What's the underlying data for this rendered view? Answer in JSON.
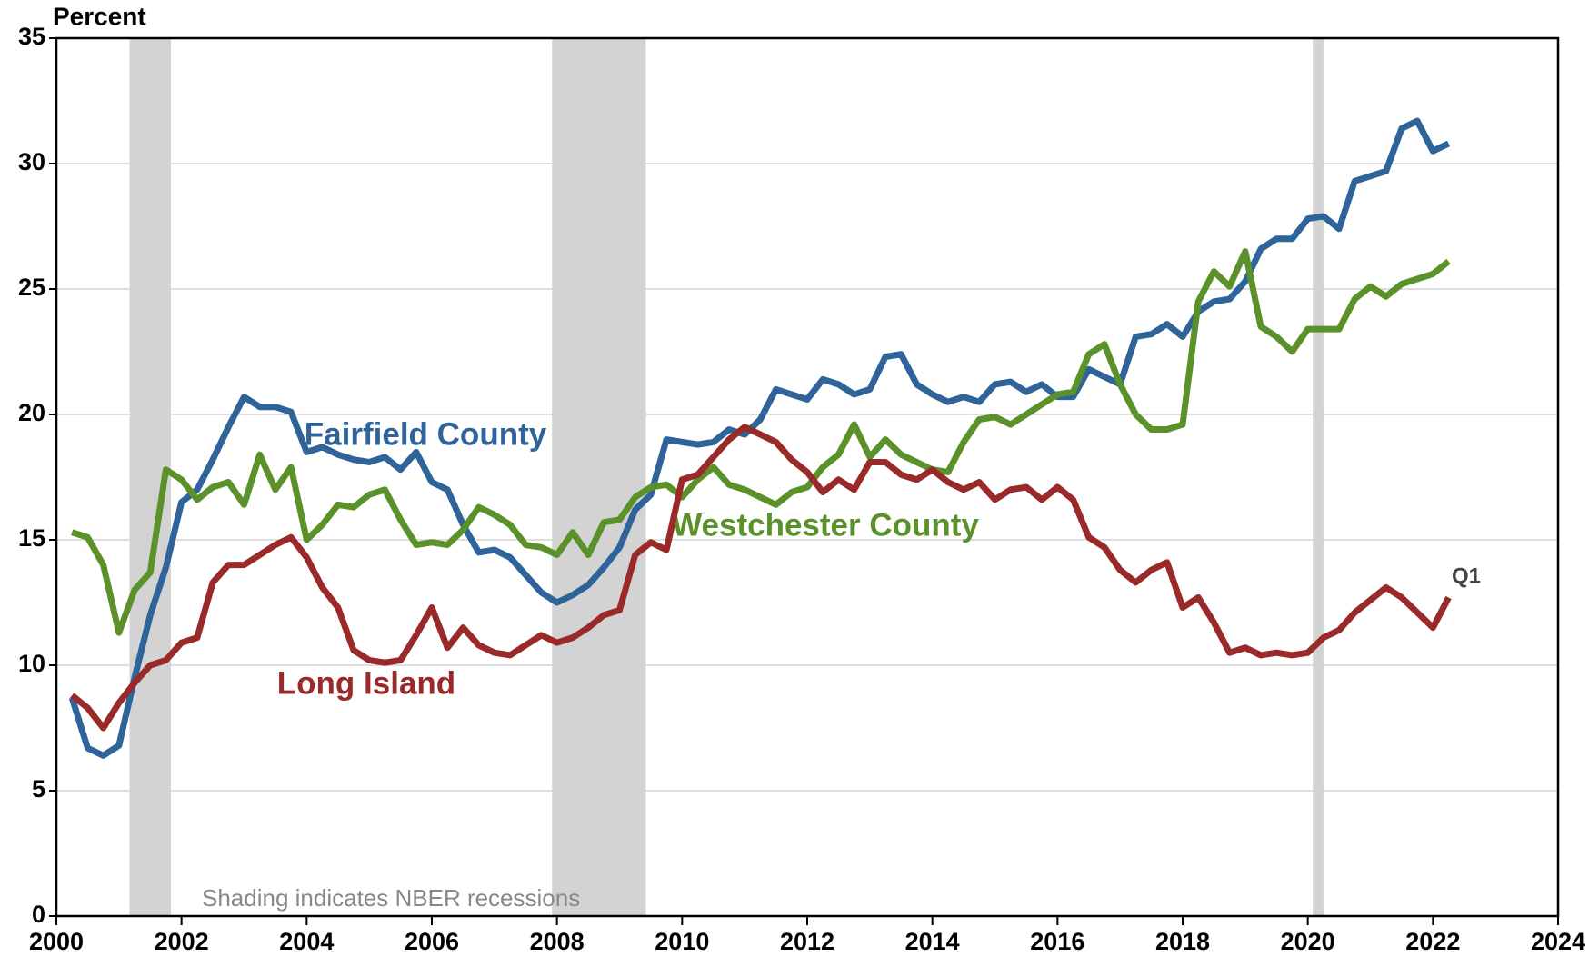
{
  "chart_data": {
    "type": "line",
    "y_label": "Percent",
    "annotation": "Shading indicates NBER recessions",
    "end_label": "Q1",
    "recessions": [
      [
        2001.17,
        2001.83
      ],
      [
        2007.92,
        2009.42
      ],
      [
        2020.08,
        2020.25
      ]
    ],
    "x": [
      2000.25,
      2000.5,
      2000.75,
      2001,
      2001.25,
      2001.5,
      2001.75,
      2002,
      2002.25,
      2002.5,
      2002.75,
      2003,
      2003.25,
      2003.5,
      2003.75,
      2004,
      2004.25,
      2004.5,
      2004.75,
      2005,
      2005.25,
      2005.5,
      2005.75,
      2006,
      2006.25,
      2006.5,
      2006.75,
      2007,
      2007.25,
      2007.5,
      2007.75,
      2008,
      2008.25,
      2008.5,
      2008.75,
      2009,
      2009.25,
      2009.5,
      2009.75,
      2010,
      2010.25,
      2010.5,
      2010.75,
      2011,
      2011.25,
      2011.5,
      2011.75,
      2012,
      2012.25,
      2012.5,
      2012.75,
      2013,
      2013.25,
      2013.5,
      2013.75,
      2014,
      2014.25,
      2014.5,
      2014.75,
      2015,
      2015.25,
      2015.5,
      2015.75,
      2016,
      2016.25,
      2016.5,
      2016.75,
      2017,
      2017.25,
      2017.5,
      2017.75,
      2018,
      2018.25,
      2018.5,
      2018.75,
      2019,
      2019.25,
      2019.5,
      2019.75,
      2020,
      2020.25,
      2020.5,
      2020.75,
      2021,
      2021.25,
      2021.5,
      2021.75,
      2022,
      2022.25
    ],
    "series": [
      {
        "name": "Fairfield County",
        "color": "#2e6499",
        "values": [
          8.7,
          6.7,
          6.4,
          6.8,
          9.5,
          12.0,
          13.9,
          16.5,
          17.0,
          18.2,
          19.5,
          20.7,
          20.3,
          20.3,
          20.1,
          18.5,
          18.7,
          18.4,
          18.2,
          18.1,
          18.3,
          17.8,
          18.5,
          17.3,
          17.0,
          15.6,
          14.5,
          14.6,
          14.3,
          13.6,
          12.9,
          12.5,
          12.8,
          13.2,
          13.9,
          14.7,
          16.2,
          16.8,
          19.0,
          18.9,
          18.8,
          18.9,
          19.4,
          19.2,
          19.8,
          21.0,
          20.8,
          20.6,
          21.4,
          21.2,
          20.8,
          21.0,
          22.3,
          22.4,
          21.2,
          20.8,
          20.5,
          20.7,
          20.5,
          21.2,
          21.3,
          20.9,
          21.2,
          20.7,
          20.7,
          21.8,
          21.5,
          21.2,
          23.1,
          23.2,
          23.6,
          23.1,
          24.1,
          24.5,
          24.6,
          25.3,
          26.6,
          27.0,
          27.0,
          27.8,
          27.9,
          27.4,
          29.3,
          29.5,
          29.7,
          31.4,
          31.7,
          30.5,
          30.8
        ]
      },
      {
        "name": "Westchester County",
        "color": "#5b9129",
        "values": [
          15.3,
          15.1,
          14.0,
          11.3,
          13.0,
          13.7,
          17.8,
          17.4,
          16.6,
          17.1,
          17.3,
          16.4,
          18.4,
          17.0,
          17.9,
          15.0,
          15.6,
          16.4,
          16.3,
          16.8,
          17.0,
          15.8,
          14.8,
          14.9,
          14.8,
          15.4,
          16.3,
          16.0,
          15.6,
          14.8,
          14.7,
          14.4,
          15.3,
          14.4,
          15.7,
          15.8,
          16.7,
          17.1,
          17.2,
          16.7,
          17.4,
          17.9,
          17.2,
          17.0,
          16.7,
          16.4,
          16.9,
          17.1,
          17.9,
          18.4,
          19.6,
          18.3,
          19.0,
          18.4,
          18.1,
          17.8,
          17.7,
          18.9,
          19.8,
          19.9,
          19.6,
          20.0,
          20.4,
          20.8,
          20.9,
          22.4,
          22.8,
          21.2,
          20.0,
          19.4,
          19.4,
          19.6,
          24.5,
          25.7,
          25.1,
          26.5,
          23.5,
          23.1,
          22.5,
          23.4,
          23.4,
          23.4,
          24.6,
          25.1,
          24.7,
          25.2,
          25.4,
          25.6,
          26.1
        ]
      },
      {
        "name": "Long Island",
        "color": "#9a2a2a",
        "values": [
          8.8,
          8.3,
          7.5,
          8.5,
          9.3,
          10.0,
          10.2,
          10.9,
          11.1,
          13.3,
          14.0,
          14.0,
          14.4,
          14.8,
          15.1,
          14.3,
          13.1,
          12.3,
          10.6,
          10.2,
          10.1,
          10.2,
          11.2,
          12.3,
          10.7,
          11.5,
          10.8,
          10.5,
          10.4,
          10.8,
          11.2,
          10.9,
          11.1,
          11.5,
          12.0,
          12.2,
          14.4,
          14.9,
          14.6,
          17.4,
          17.6,
          18.3,
          19.0,
          19.5,
          19.2,
          18.9,
          18.2,
          17.7,
          16.9,
          17.4,
          17.0,
          18.1,
          18.1,
          17.6,
          17.4,
          17.8,
          17.3,
          17.0,
          17.3,
          16.6,
          17.0,
          17.1,
          16.6,
          17.1,
          16.6,
          15.1,
          14.7,
          13.8,
          13.3,
          13.8,
          14.1,
          12.3,
          12.7,
          11.7,
          10.5,
          10.7,
          10.4,
          10.5,
          10.4,
          10.5,
          11.1,
          11.4,
          12.1,
          12.6,
          13.1,
          12.7,
          12.1,
          11.5,
          12.7
        ]
      }
    ],
    "xlim": [
      2000,
      2024
    ],
    "xticks": [
      2000,
      2002,
      2004,
      2006,
      2008,
      2010,
      2012,
      2014,
      2016,
      2018,
      2020,
      2022,
      2024
    ],
    "ylim": [
      0,
      35
    ],
    "yticks": [
      0,
      5,
      10,
      15,
      20,
      25,
      30,
      35
    ],
    "grid": true
  }
}
